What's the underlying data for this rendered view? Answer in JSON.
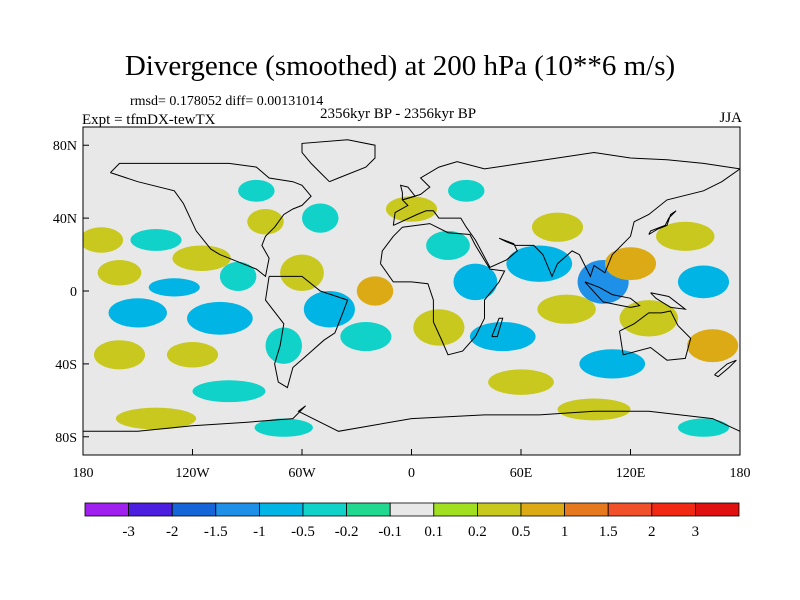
{
  "chart_data": {
    "type": "heatmap",
    "title": "Divergence (smoothed) at 200 hPa (10**6 m/s)",
    "stats_text": "rmsd= 0.178052 diff= 0.00131014",
    "experiment_text": "Expt = tfmDX-tewTX",
    "period_text": "2356kyr BP - 2356kyr BP",
    "season_text": "JJA",
    "x_ticks": [
      {
        "value": -180,
        "label": "180"
      },
      {
        "value": -120,
        "label": "120W"
      },
      {
        "value": -60,
        "label": "60W"
      },
      {
        "value": 0,
        "label": "0"
      },
      {
        "value": 60,
        "label": "60E"
      },
      {
        "value": 120,
        "label": "120E"
      },
      {
        "value": 180,
        "label": "180"
      }
    ],
    "y_ticks": [
      {
        "value": 80,
        "label": "80N"
      },
      {
        "value": 40,
        "label": "40N"
      },
      {
        "value": 0,
        "label": "0"
      },
      {
        "value": -40,
        "label": "40S"
      },
      {
        "value": -80,
        "label": "80S"
      }
    ],
    "xlim": [
      -180,
      180
    ],
    "ylim": [
      -90,
      90
    ],
    "colorbar": {
      "levels": [
        "-3",
        "-2",
        "-1.5",
        "-1",
        "-0.5",
        "-0.2",
        "-0.1",
        "0.1",
        "0.2",
        "0.5",
        "1",
        "1.5",
        "2",
        "3"
      ],
      "colors": [
        "#a020f0",
        "#4b1ee0",
        "#1565d8",
        "#1e90e8",
        "#00b4e6",
        "#10d2c8",
        "#20d890",
        "#e8e8e8",
        "#a0e020",
        "#c8c81e",
        "#dcaa14",
        "#e6781e",
        "#f0502a",
        "#f02814",
        "#e01010"
      ]
    },
    "field_colors": {
      "background": "#e8e8e8",
      "coast": "#000000"
    },
    "features": [
      {
        "lon": -170,
        "lat": 28,
        "rx": 12,
        "ry": 7,
        "bin": 9
      },
      {
        "lon": -140,
        "lat": 28,
        "rx": 14,
        "ry": 6,
        "bin": 5
      },
      {
        "lon": -115,
        "lat": 18,
        "rx": 16,
        "ry": 7,
        "bin": 9
      },
      {
        "lon": -160,
        "lat": 10,
        "rx": 12,
        "ry": 7,
        "bin": 9
      },
      {
        "lon": -130,
        "lat": 2,
        "rx": 14,
        "ry": 5,
        "bin": 4
      },
      {
        "lon": -95,
        "lat": 8,
        "rx": 10,
        "ry": 8,
        "bin": 5
      },
      {
        "lon": -150,
        "lat": -12,
        "rx": 16,
        "ry": 8,
        "bin": 4
      },
      {
        "lon": -105,
        "lat": -15,
        "rx": 18,
        "ry": 9,
        "bin": 4
      },
      {
        "lon": -160,
        "lat": -35,
        "rx": 14,
        "ry": 8,
        "bin": 9
      },
      {
        "lon": -120,
        "lat": -35,
        "rx": 14,
        "ry": 7,
        "bin": 9
      },
      {
        "lon": -80,
        "lat": 38,
        "rx": 10,
        "ry": 7,
        "bin": 9
      },
      {
        "lon": -85,
        "lat": 55,
        "rx": 10,
        "ry": 6,
        "bin": 5
      },
      {
        "lon": -50,
        "lat": 40,
        "rx": 10,
        "ry": 8,
        "bin": 5
      },
      {
        "lon": -60,
        "lat": 10,
        "rx": 12,
        "ry": 10,
        "bin": 9
      },
      {
        "lon": -45,
        "lat": -10,
        "rx": 14,
        "ry": 10,
        "bin": 4
      },
      {
        "lon": -70,
        "lat": -30,
        "rx": 10,
        "ry": 10,
        "bin": 5
      },
      {
        "lon": -20,
        "lat": 0,
        "rx": 10,
        "ry": 8,
        "bin": 10
      },
      {
        "lon": -25,
        "lat": -25,
        "rx": 14,
        "ry": 8,
        "bin": 5
      },
      {
        "lon": 0,
        "lat": 45,
        "rx": 14,
        "ry": 7,
        "bin": 9
      },
      {
        "lon": 30,
        "lat": 55,
        "rx": 10,
        "ry": 6,
        "bin": 5
      },
      {
        "lon": 20,
        "lat": 25,
        "rx": 12,
        "ry": 8,
        "bin": 5
      },
      {
        "lon": 35,
        "lat": 5,
        "rx": 12,
        "ry": 10,
        "bin": 4
      },
      {
        "lon": 15,
        "lat": -20,
        "rx": 14,
        "ry": 10,
        "bin": 9
      },
      {
        "lon": 50,
        "lat": -25,
        "rx": 18,
        "ry": 8,
        "bin": 4
      },
      {
        "lon": 70,
        "lat": 15,
        "rx": 18,
        "ry": 10,
        "bin": 4
      },
      {
        "lon": 85,
        "lat": -10,
        "rx": 16,
        "ry": 8,
        "bin": 9
      },
      {
        "lon": 80,
        "lat": 35,
        "rx": 14,
        "ry": 8,
        "bin": 9
      },
      {
        "lon": 105,
        "lat": 5,
        "rx": 14,
        "ry": 12,
        "bin": 3
      },
      {
        "lon": 120,
        "lat": 15,
        "rx": 14,
        "ry": 9,
        "bin": 10
      },
      {
        "lon": 130,
        "lat": -15,
        "rx": 16,
        "ry": 10,
        "bin": 9
      },
      {
        "lon": 150,
        "lat": 30,
        "rx": 16,
        "ry": 8,
        "bin": 9
      },
      {
        "lon": 160,
        "lat": 5,
        "rx": 14,
        "ry": 9,
        "bin": 4
      },
      {
        "lon": 165,
        "lat": -30,
        "rx": 14,
        "ry": 9,
        "bin": 10
      },
      {
        "lon": 110,
        "lat": -40,
        "rx": 18,
        "ry": 8,
        "bin": 4
      },
      {
        "lon": 60,
        "lat": -50,
        "rx": 18,
        "ry": 7,
        "bin": 9
      },
      {
        "lon": -100,
        "lat": -55,
        "rx": 20,
        "ry": 6,
        "bin": 5
      },
      {
        "lon": -140,
        "lat": -70,
        "rx": 22,
        "ry": 6,
        "bin": 9
      },
      {
        "lon": -70,
        "lat": -75,
        "rx": 16,
        "ry": 5,
        "bin": 5
      },
      {
        "lon": 100,
        "lat": -65,
        "rx": 20,
        "ry": 6,
        "bin": 9
      },
      {
        "lon": 160,
        "lat": -75,
        "rx": 14,
        "ry": 5,
        "bin": 5
      }
    ],
    "coastlines": [
      {
        "name": "north-america",
        "points": [
          [
            -165,
            65
          ],
          [
            -150,
            60
          ],
          [
            -130,
            55
          ],
          [
            -125,
            48
          ],
          [
            -118,
            33
          ],
          [
            -110,
            23
          ],
          [
            -105,
            20
          ],
          [
            -95,
            16
          ],
          [
            -85,
            12
          ],
          [
            -80,
            8
          ],
          [
            -78,
            18
          ],
          [
            -82,
            25
          ],
          [
            -80,
            30
          ],
          [
            -75,
            35
          ],
          [
            -70,
            42
          ],
          [
            -65,
            45
          ],
          [
            -60,
            47
          ],
          [
            -55,
            52
          ],
          [
            -60,
            58
          ],
          [
            -65,
            60
          ],
          [
            -78,
            62
          ],
          [
            -85,
            68
          ],
          [
            -100,
            70
          ],
          [
            -120,
            70
          ],
          [
            -140,
            70
          ],
          [
            -160,
            70
          ],
          [
            -165,
            65
          ]
        ]
      },
      {
        "name": "south-america",
        "points": [
          [
            -78,
            8
          ],
          [
            -60,
            8
          ],
          [
            -50,
            0
          ],
          [
            -35,
            -5
          ],
          [
            -38,
            -13
          ],
          [
            -42,
            -23
          ],
          [
            -48,
            -27
          ],
          [
            -57,
            -35
          ],
          [
            -65,
            -42
          ],
          [
            -68,
            -53
          ],
          [
            -73,
            -50
          ],
          [
            -75,
            -40
          ],
          [
            -72,
            -30
          ],
          [
            -70,
            -18
          ],
          [
            -80,
            -5
          ],
          [
            -78,
            8
          ]
        ]
      },
      {
        "name": "africa",
        "points": [
          [
            -17,
            15
          ],
          [
            -16,
            22
          ],
          [
            -10,
            30
          ],
          [
            -5,
            35
          ],
          [
            10,
            37
          ],
          [
            20,
            32
          ],
          [
            32,
            31
          ],
          [
            35,
            25
          ],
          [
            43,
            12
          ],
          [
            51,
            11
          ],
          [
            48,
            5
          ],
          [
            40,
            -5
          ],
          [
            40,
            -15
          ],
          [
            35,
            -25
          ],
          [
            28,
            -33
          ],
          [
            20,
            -35
          ],
          [
            17,
            -28
          ],
          [
            12,
            -17
          ],
          [
            12,
            -5
          ],
          [
            9,
            4
          ],
          [
            0,
            5
          ],
          [
            -10,
            5
          ],
          [
            -17,
            15
          ]
        ]
      },
      {
        "name": "eurasia",
        "points": [
          [
            -10,
            36
          ],
          [
            -9,
            43
          ],
          [
            -2,
            47
          ],
          [
            -5,
            50
          ],
          [
            5,
            53
          ],
          [
            10,
            57
          ],
          [
            5,
            62
          ],
          [
            15,
            68
          ],
          [
            25,
            71
          ],
          [
            40,
            67
          ],
          [
            60,
            70
          ],
          [
            80,
            73
          ],
          [
            100,
            76
          ],
          [
            120,
            73
          ],
          [
            140,
            72
          ],
          [
            160,
            70
          ],
          [
            180,
            67
          ],
          [
            170,
            60
          ],
          [
            160,
            55
          ],
          [
            140,
            50
          ],
          [
            130,
            42
          ],
          [
            122,
            38
          ],
          [
            120,
            30
          ],
          [
            110,
            20
          ],
          [
            106,
            10
          ],
          [
            100,
            14
          ],
          [
            98,
            8
          ],
          [
            92,
            20
          ],
          [
            88,
            22
          ],
          [
            80,
            15
          ],
          [
            77,
            8
          ],
          [
            72,
            20
          ],
          [
            67,
            25
          ],
          [
            57,
            25
          ],
          [
            52,
            27
          ],
          [
            48,
            29
          ],
          [
            56,
            26
          ],
          [
            58,
            22
          ],
          [
            52,
            17
          ],
          [
            43,
            13
          ],
          [
            35,
            28
          ],
          [
            30,
            35
          ],
          [
            27,
            40
          ],
          [
            20,
            40
          ],
          [
            15,
            40
          ],
          [
            12,
            44
          ],
          [
            8,
            44
          ],
          [
            3,
            42
          ],
          [
            -10,
            36
          ]
        ]
      },
      {
        "name": "greenland",
        "points": [
          [
            -45,
            60
          ],
          [
            -50,
            65
          ],
          [
            -55,
            70
          ],
          [
            -60,
            76
          ],
          [
            -60,
            81
          ],
          [
            -35,
            83
          ],
          [
            -20,
            80
          ],
          [
            -20,
            73
          ],
          [
            -25,
            68
          ],
          [
            -40,
            62
          ],
          [
            -45,
            60
          ]
        ]
      },
      {
        "name": "australia",
        "points": [
          [
            114,
            -22
          ],
          [
            122,
            -18
          ],
          [
            130,
            -12
          ],
          [
            137,
            -12
          ],
          [
            142,
            -11
          ],
          [
            146,
            -19
          ],
          [
            153,
            -26
          ],
          [
            150,
            -37
          ],
          [
            140,
            -38
          ],
          [
            131,
            -31
          ],
          [
            116,
            -35
          ],
          [
            114,
            -22
          ]
        ]
      },
      {
        "name": "antarctica",
        "points": [
          [
            -180,
            -77
          ],
          [
            -150,
            -77
          ],
          [
            -120,
            -74
          ],
          [
            -90,
            -72
          ],
          [
            -65,
            -70
          ],
          [
            -58,
            -63
          ],
          [
            -62,
            -66
          ],
          [
            -40,
            -77
          ],
          [
            0,
            -70
          ],
          [
            40,
            -68
          ],
          [
            70,
            -68
          ],
          [
            100,
            -66
          ],
          [
            130,
            -66
          ],
          [
            165,
            -70
          ],
          [
            180,
            -77
          ]
        ]
      },
      {
        "name": "indonesia",
        "points": [
          [
            95,
            5
          ],
          [
            105,
            -6
          ],
          [
            115,
            -8
          ],
          [
            120,
            -9
          ],
          [
            125,
            -8
          ],
          [
            120,
            -4
          ],
          [
            110,
            -2
          ],
          [
            103,
            2
          ],
          [
            95,
            5
          ]
        ]
      },
      {
        "name": "new-guinea",
        "points": [
          [
            131,
            -1
          ],
          [
            141,
            -3
          ],
          [
            150,
            -10
          ],
          [
            142,
            -9
          ],
          [
            134,
            -4
          ],
          [
            131,
            -1
          ]
        ]
      },
      {
        "name": "japan",
        "points": [
          [
            130,
            31
          ],
          [
            135,
            34
          ],
          [
            140,
            36
          ],
          [
            142,
            42
          ],
          [
            145,
            44
          ],
          [
            141,
            40
          ],
          [
            139,
            36
          ],
          [
            131,
            33
          ],
          [
            130,
            31
          ]
        ]
      },
      {
        "name": "madagascar",
        "points": [
          [
            44,
            -25
          ],
          [
            48,
            -15
          ],
          [
            50,
            -15
          ],
          [
            47,
            -25
          ],
          [
            44,
            -25
          ]
        ]
      },
      {
        "name": "uk",
        "points": [
          [
            -5,
            50
          ],
          [
            2,
            52
          ],
          [
            -2,
            57
          ],
          [
            -6,
            58
          ],
          [
            -5,
            54
          ],
          [
            -5,
            50
          ]
        ]
      },
      {
        "name": "new-zealand",
        "points": [
          [
            166,
            -46
          ],
          [
            173,
            -40
          ],
          [
            178,
            -38
          ],
          [
            174,
            -42
          ],
          [
            168,
            -47
          ],
          [
            166,
            -46
          ]
        ]
      }
    ]
  }
}
